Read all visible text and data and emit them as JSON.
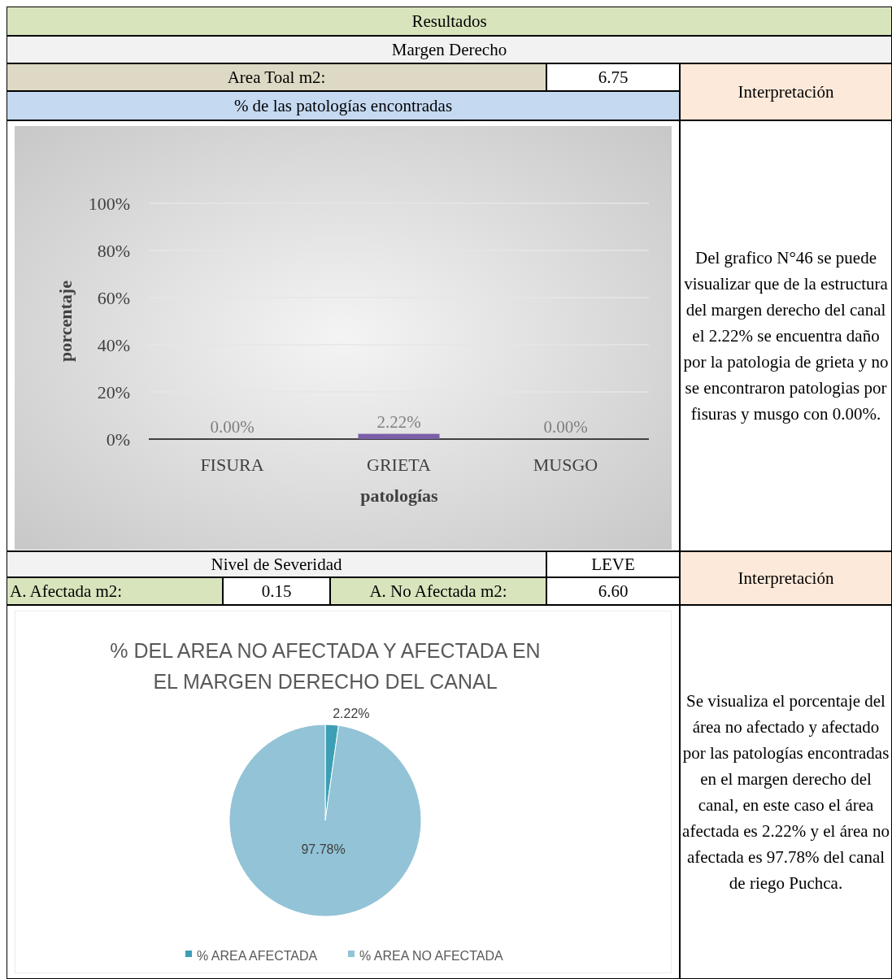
{
  "chart_data": [
    {
      "type": "other",
      "title": "Resultados",
      "subtitle": "Margen Derecho",
      "annotations": [
        "Area Toal m2:",
        "6.75"
      ]
    },
    {
      "type": "other",
      "title": "Interpretación",
      "annotations": [
        "Del grafico N°46 se puede visualizar que de la estructura del margen derecho del canal el 2.22% se encuentra daño por la patologia de grieta y no se encontraron patologias por fisuras y musgo con 0.00%."
      ]
    },
    {
      "type": "bar",
      "title": "% de las patologías encontradas",
      "xlabel": "patologías",
      "ylabel": "porcentaje",
      "categories": [
        "FISURA",
        "GRIETA",
        "MUSGO"
      ],
      "values": [
        0,
        2.22,
        0
      ],
      "color": "#7b5fa8",
      "value_labels": [
        "0.00%",
        "2.22%",
        "0.00%"
      ],
      "ylim": [
        0,
        100
      ],
      "yticks": [
        {
          "value": 0,
          "label": "0%"
        },
        {
          "value": 20,
          "label": "20%"
        },
        {
          "value": 40,
          "label": "40%"
        },
        {
          "value": 60,
          "label": "60%"
        },
        {
          "value": 80,
          "label": "80%"
        },
        {
          "value": 100,
          "label": "100%"
        }
      ],
      "grid": "y"
    },
    {
      "type": "other",
      "annotations": [
        "Nivel de Severidad",
        "LEVE",
        "A. Afectada m2:",
        "0.15",
        "A. No Afectada m2:",
        "6.60"
      ]
    },
    {
      "type": "other",
      "title": "Interpretación",
      "annotations": [
        "Se visualiza el porcentaje del área no afectado y afectado por las patologías encontradas en el margen derecho del canal, en este caso el área afectada es 2.22% y el área no afectada es 97.78% del canal de riego Puchca."
      ]
    },
    {
      "type": "pie",
      "title": "% DEL AREA NO AFECTADA Y AFECTADA EN EL MARGEN DERECHO DEL CANAL",
      "categories": [
        "% AREA AFECTADA",
        "% AREA NO AFECTADA"
      ],
      "values": [
        2.22,
        97.78
      ],
      "colors": [
        "#3d9fb5",
        "#92c3d6"
      ],
      "value_labels": [
        "2.22%",
        "97.78%"
      ],
      "legend": "bottom"
    }
  ]
}
